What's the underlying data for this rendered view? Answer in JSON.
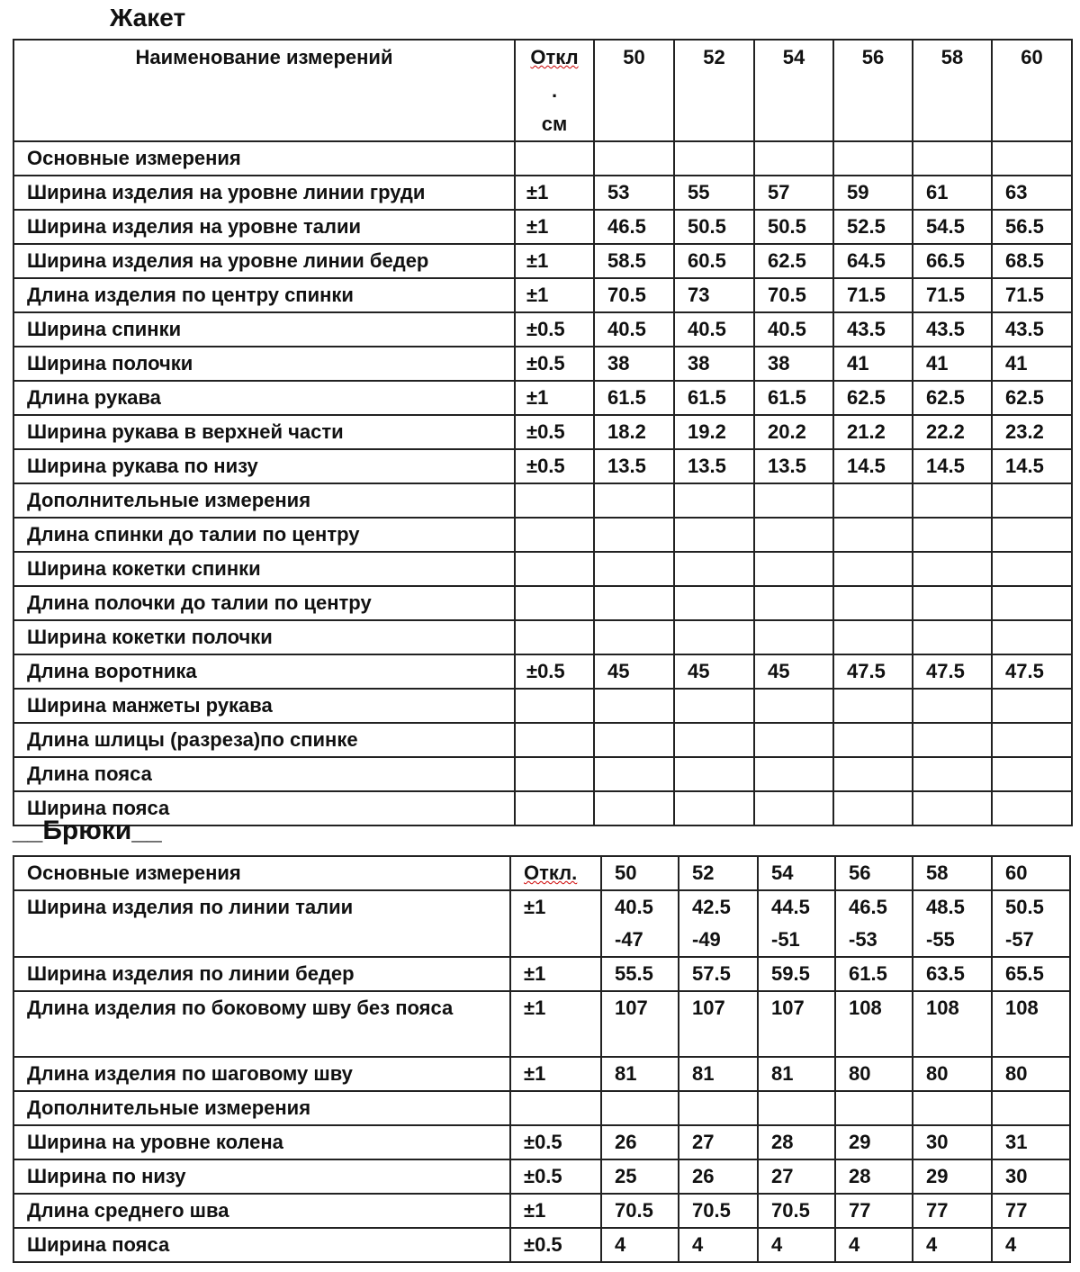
{
  "jacket": {
    "title": "Жакет",
    "header": {
      "name": "Наименование измерений",
      "tolerance_line1": "Откл",
      "tolerance_line2": ".",
      "tolerance_line3": "см",
      "sizes": [
        "50",
        "52",
        "54",
        "56",
        "58",
        "60"
      ]
    },
    "rows": [
      {
        "name": "Основные измерения",
        "tol": "",
        "values": [
          "",
          "",
          "",
          "",
          "",
          ""
        ]
      },
      {
        "name": "Ширина изделия на уровне линии груди",
        "tol": "±1",
        "values": [
          "53",
          "55",
          "57",
          "59",
          "61",
          "63"
        ]
      },
      {
        "name": "Ширина изделия на уровне  талии",
        "tol": "±1",
        "values": [
          "46.5",
          "50.5",
          "50.5",
          "52.5",
          "54.5",
          "56.5"
        ]
      },
      {
        "name": "Ширина изделия на уровне линии бедер",
        "tol": "±1",
        "values": [
          "58.5",
          "60.5",
          "62.5",
          "64.5",
          "66.5",
          "68.5"
        ]
      },
      {
        "name": "Длина изделия по центру спинки",
        "tol": "±1",
        "values": [
          "70.5",
          "73",
          "70.5",
          "71.5",
          "71.5",
          "71.5"
        ]
      },
      {
        "name": "Ширина спинки",
        "tol": "±0.5",
        "values": [
          "40.5",
          "40.5",
          "40.5",
          "43.5",
          "43.5",
          "43.5"
        ]
      },
      {
        "name": "Ширина полочки",
        "tol": "±0.5",
        "values": [
          "38",
          "38",
          "38",
          "41",
          "41",
          "41"
        ]
      },
      {
        "name": "Длина рукава",
        "tol": "±1",
        "values": [
          "61.5",
          "61.5",
          "61.5",
          "62.5",
          "62.5",
          "62.5"
        ]
      },
      {
        "name": "Ширина рукава в верхней части",
        "tol": "±0.5",
        "values": [
          "18.2",
          "19.2",
          "20.2",
          "21.2",
          "22.2",
          "23.2"
        ]
      },
      {
        "name": "Ширина рукава по низу",
        "tol": "±0.5",
        "values": [
          "13.5",
          "13.5",
          "13.5",
          "14.5",
          "14.5",
          "14.5"
        ]
      },
      {
        "name": "Дополнительные измерения",
        "tol": "",
        "values": [
          "",
          "",
          "",
          "",
          "",
          ""
        ]
      },
      {
        "name": "Длина спинки до талии по центру",
        "tol": "",
        "values": [
          "",
          "",
          "",
          "",
          "",
          ""
        ]
      },
      {
        "name": "Ширина кокетки спинки",
        "tol": "",
        "values": [
          "",
          "",
          "",
          "",
          "",
          ""
        ]
      },
      {
        "name": "Длина полочки до талии по центру",
        "tol": "",
        "values": [
          "",
          "",
          "",
          "",
          "",
          ""
        ]
      },
      {
        "name": "Ширина кокетки полочки",
        "tol": "",
        "values": [
          "",
          "",
          "",
          "",
          "",
          ""
        ]
      },
      {
        "name": "Длина воротника",
        "tol": "±0.5",
        "values": [
          "45",
          "45",
          "45",
          "47.5",
          "47.5",
          "47.5"
        ]
      },
      {
        "name": "Ширина манжеты рукава",
        "tol": "",
        "values": [
          "",
          "",
          "",
          "",
          "",
          ""
        ]
      },
      {
        "name": "Длина шлицы (разреза)по спинке",
        "tol": "",
        "values": [
          "",
          "",
          "",
          "",
          "",
          ""
        ]
      },
      {
        "name": "Длина пояса",
        "tol": "",
        "values": [
          "",
          "",
          "",
          "",
          "",
          ""
        ]
      },
      {
        "name": "Ширина пояса",
        "tol": "",
        "values": [
          "",
          "",
          "",
          "",
          "",
          ""
        ]
      }
    ]
  },
  "trousers": {
    "title": "__Брюки__",
    "header": {
      "name": "Основные измерения",
      "tolerance": "Откл.",
      "sizes": [
        "50",
        "52",
        "54",
        "56",
        "58",
        "60"
      ]
    },
    "rows": [
      {
        "name": "Ширина изделия по линии талии",
        "tol": "±1",
        "values": [
          "40.5 -47",
          "42.5 -49",
          "44.5 -51",
          "46.5 -53",
          "48.5 -55",
          "50.5 -57"
        ],
        "tall": true
      },
      {
        "name": "Ширина изделия по линии  бедер",
        "tol": "±1",
        "values": [
          "55.5",
          "57.5",
          "59.5",
          "61.5",
          "63.5",
          "65.5"
        ]
      },
      {
        "name": "Длина изделия по боковому шву без пояса",
        "tol": "±1",
        "values": [
          "107",
          "107",
          "107",
          "108",
          "108",
          "108"
        ],
        "tall": true
      },
      {
        "name": "Длина изделия по шаговому шву",
        "tol": "±1",
        "values": [
          "81",
          "81",
          "81",
          "80",
          "80",
          "80"
        ]
      },
      {
        "name": "Дополнительные измерения",
        "tol": "",
        "values": [
          "",
          "",
          "",
          "",
          "",
          ""
        ]
      },
      {
        "name": "Ширина на уровне колена",
        "tol": "±0.5",
        "values": [
          "26",
          "27",
          "28",
          "29",
          "30",
          "31"
        ]
      },
      {
        "name": "Ширина по низу",
        "tol": "±0.5",
        "values": [
          "25",
          "26",
          "27",
          "28",
          "29",
          "30"
        ]
      },
      {
        "name": "Длина среднего шва",
        "tol": "±1",
        "values": [
          "70.5",
          "70.5",
          "70.5",
          "77",
          "77",
          "77"
        ]
      },
      {
        "name": "Ширина пояса",
        "tol": "±0.5",
        "values": [
          "4",
          "4",
          "4",
          "4",
          "4",
          "4"
        ]
      }
    ]
  }
}
